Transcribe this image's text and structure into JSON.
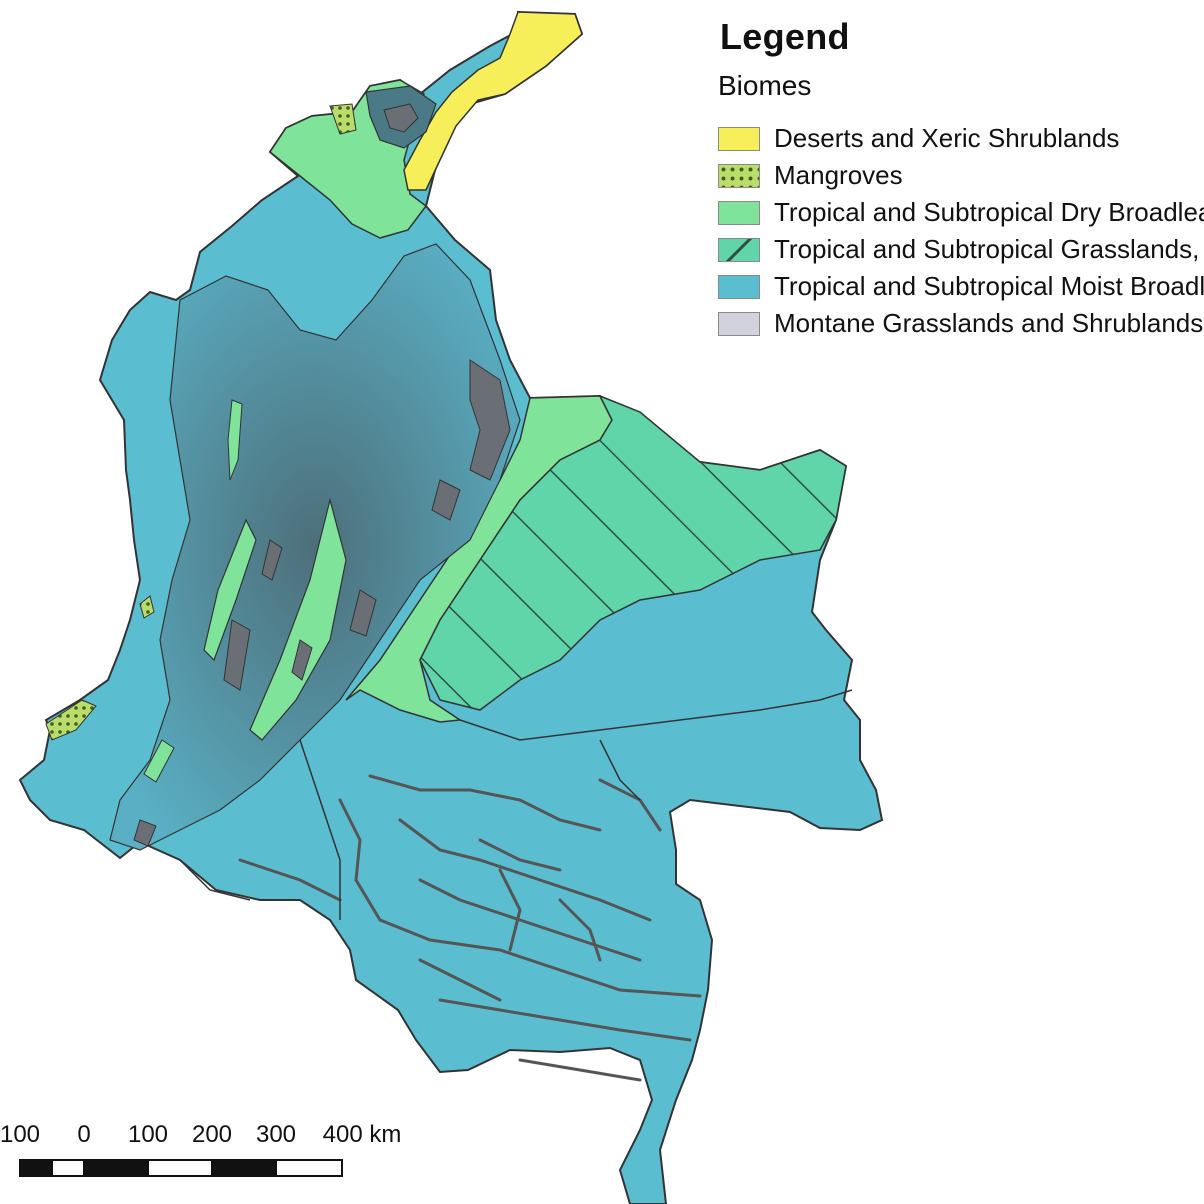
{
  "legend": {
    "title": "Legend",
    "subtitle": "Biomes",
    "items": [
      {
        "label": "Deserts and Xeric Shrublands",
        "color": "#f7ef5a",
        "pattern": "solid"
      },
      {
        "label": "Mangroves",
        "color": "#b9dd6a",
        "pattern": "dots"
      },
      {
        "label": "Tropical and Subtropical Dry Broadleaf Forests",
        "color": "#7fe39a",
        "pattern": "solid"
      },
      {
        "label": "Tropical and Subtropical Grasslands, Savannas and Shrublands",
        "color": "#5fd5a9",
        "pattern": "hatch"
      },
      {
        "label": "Tropical and Subtropical Moist Broadleaf Forests",
        "color": "#5abdd0",
        "pattern": "solid"
      },
      {
        "label": "Montane Grasslands and Shrublands",
        "color": "#d2d2dc",
        "pattern": "solid"
      }
    ]
  },
  "scale_bar": {
    "labels": [
      "100",
      "0",
      "100",
      "200",
      "300",
      "400 km"
    ]
  },
  "colors": {
    "relief_dark": "#555d66",
    "rivers": "#555555",
    "outline": "#333333"
  }
}
